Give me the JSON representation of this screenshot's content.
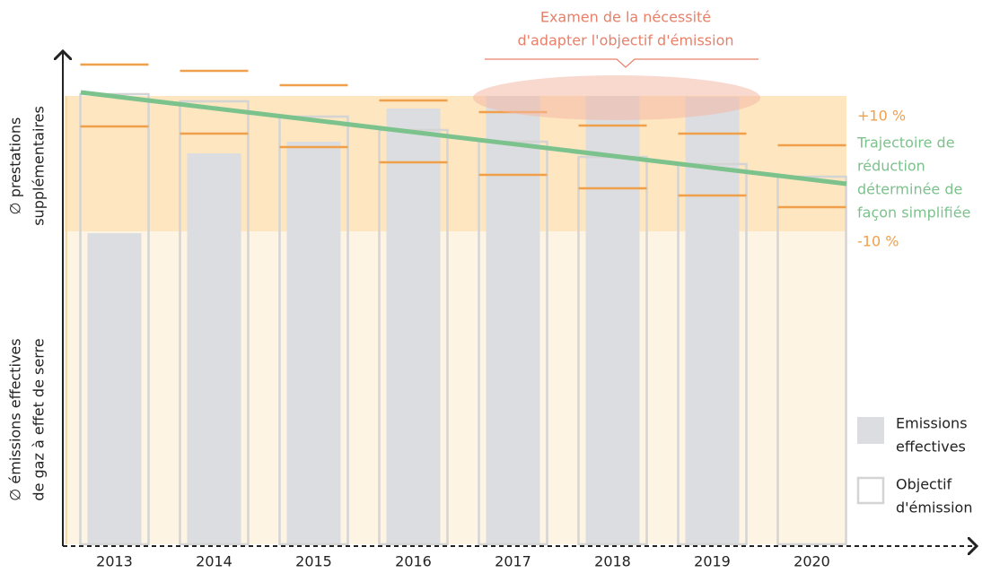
{
  "chart_data": {
    "type": "bar",
    "categories": [
      "2013",
      "2014",
      "2015",
      "2016",
      "2017",
      "2018",
      "2019",
      "2020"
    ],
    "series": [
      {
        "name": [
          "Emissions",
          "effectives"
        ],
        "color": "#dcdde0",
        "values": [
          69.4,
          87.2,
          89.8,
          97.2,
          100,
          100,
          99.8,
          null
        ]
      },
      {
        "name": [
          "Objectif",
          "d'émission"
        ],
        "color": "#d4d4d4",
        "values": [
          100.4,
          98.8,
          95.4,
          92.4,
          89.8,
          86.4,
          84.8,
          82
        ]
      }
    ],
    "upper_limits": {
      "color": "#f0a04b",
      "values": [
        107,
        105.6,
        102.4,
        99,
        96.4,
        93.4,
        91.6,
        89
      ]
    },
    "lower_limits": {
      "color": "#f0a04b",
      "values": [
        93.2,
        91.6,
        88.6,
        85.2,
        82.4,
        79.4,
        77.8,
        75.2
      ]
    },
    "trajectory": {
      "name": [
        "Trajectoire de",
        "réduction",
        "déterminée de",
        "façon simplifiée"
      ],
      "color": "#7cc28c",
      "values": [
        100.8,
        80.4
      ]
    },
    "band": {
      "values": [
        69.8,
        100
      ],
      "labels": [
        "-10 %",
        "+10 %"
      ],
      "color": "#fde6c0"
    },
    "annotation": [
      "Examen de la nécessité",
      "d'adapter l'objectif d'émission"
    ],
    "ylabel_top": [
      "∅ prestations",
      "supplémentaires"
    ],
    "ylabel_bottom": [
      "∅ émissions effectives",
      "de gaz à effet de serre"
    ],
    "ylim": [
      0,
      110
    ]
  }
}
